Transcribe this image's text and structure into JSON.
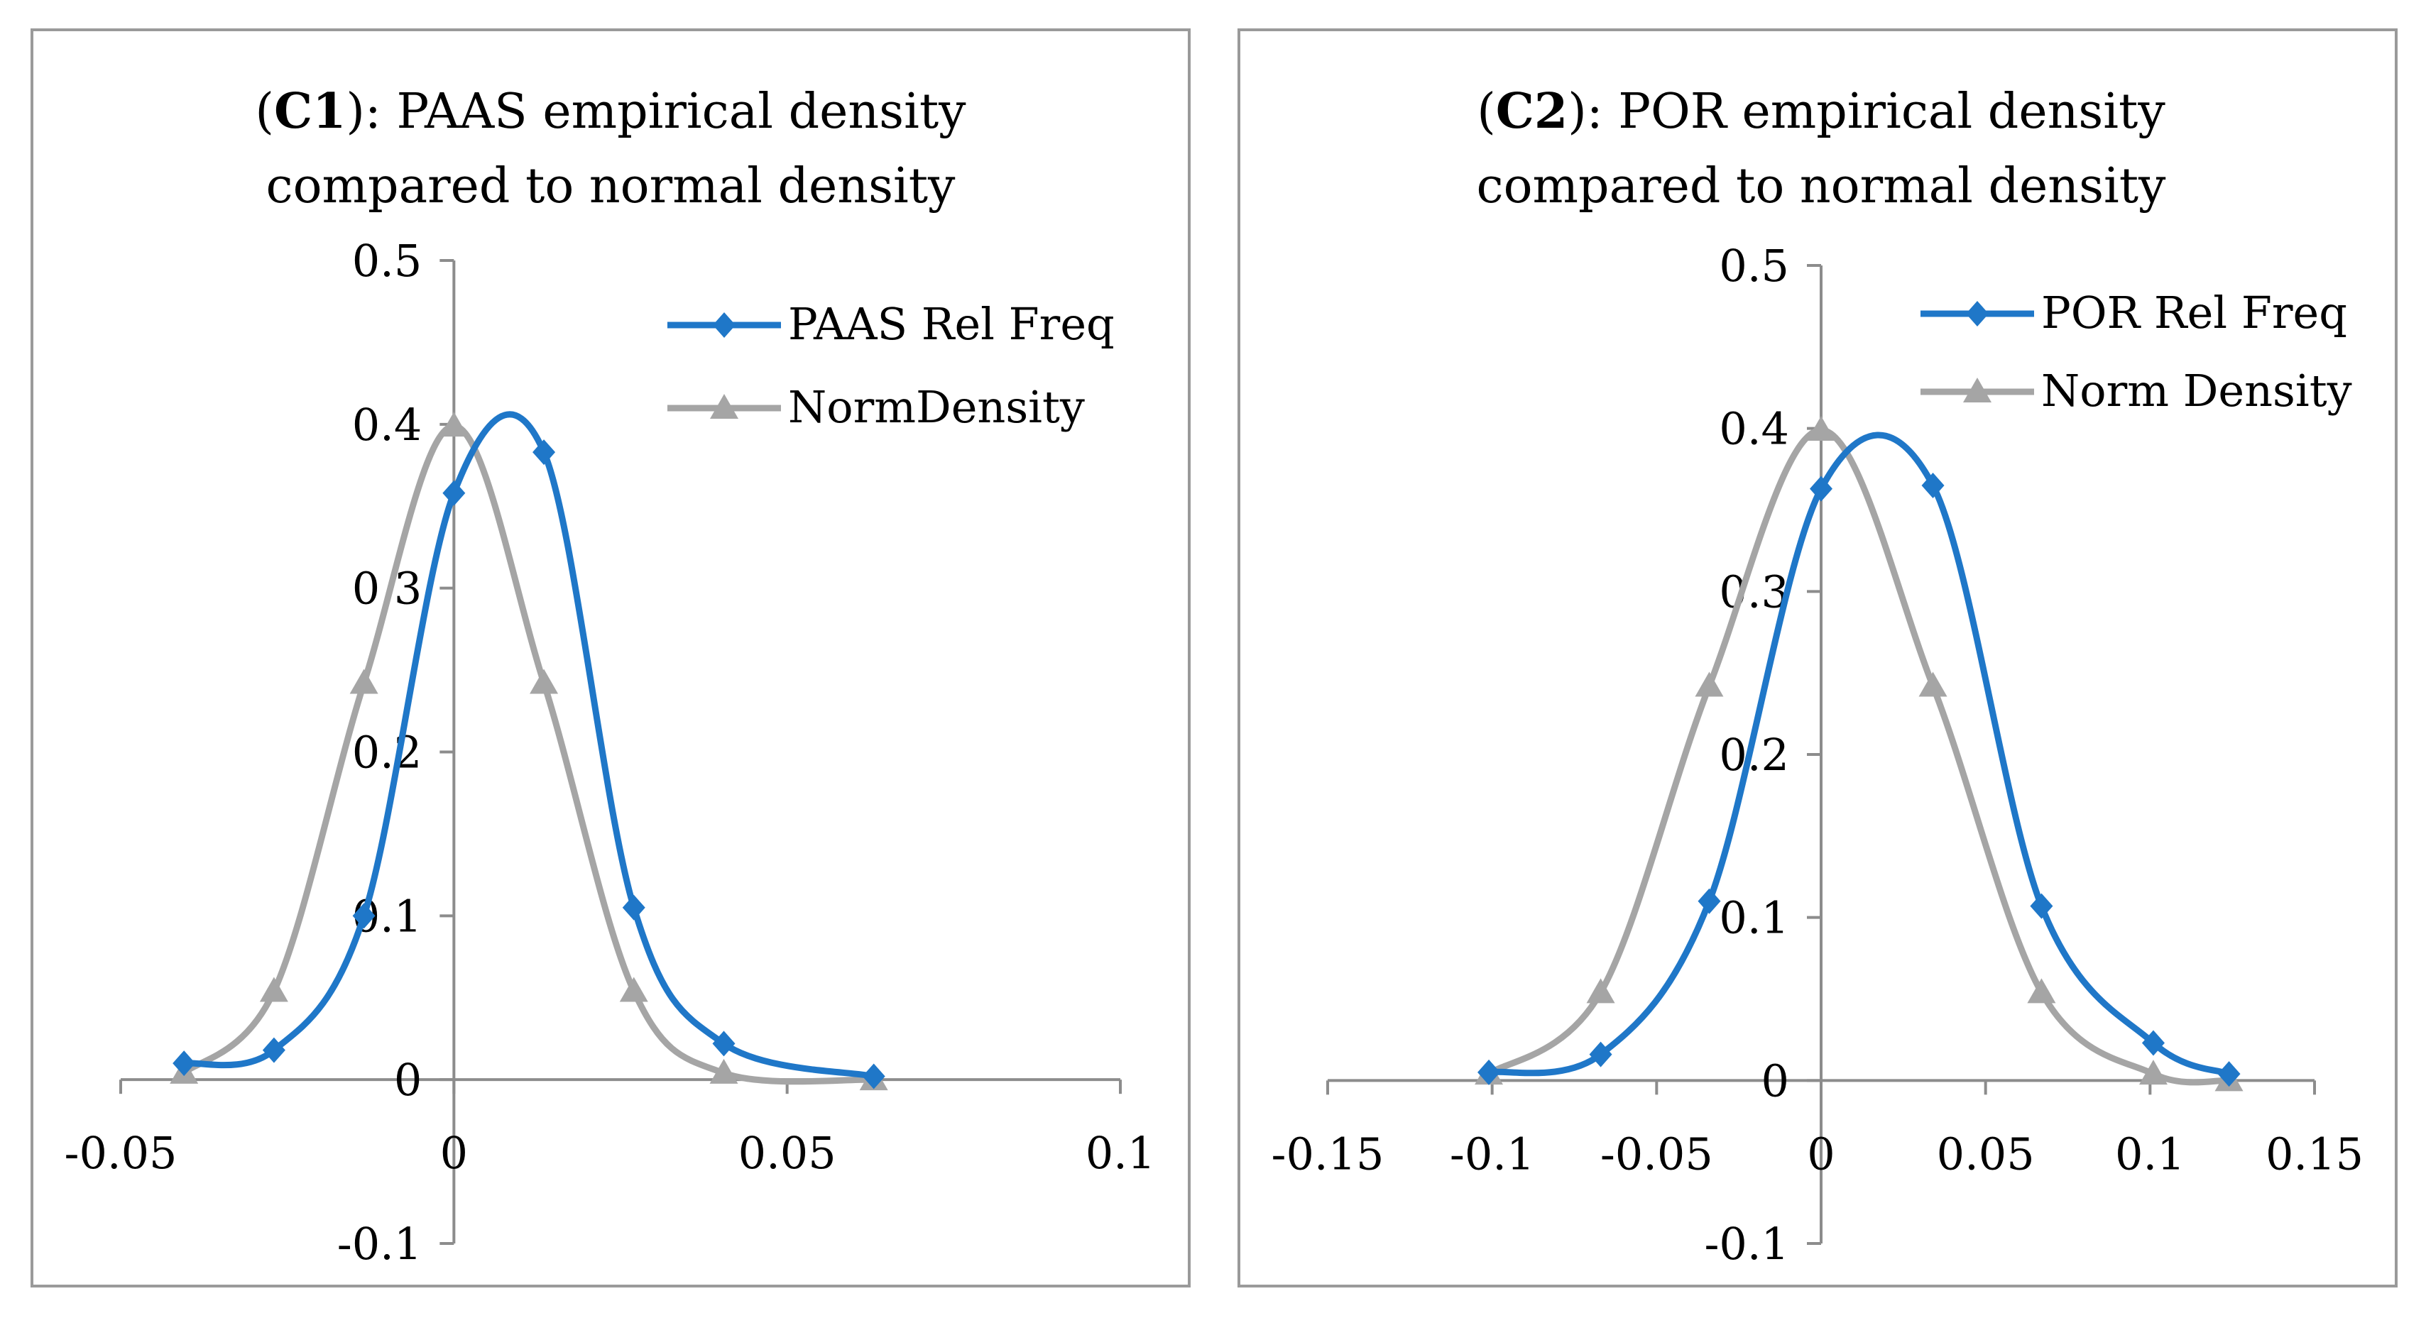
{
  "chart_data": [
    {
      "type": "line",
      "title_prefix": "(",
      "title_bold": "C1",
      "title_rest": "): PAAS empirical density",
      "title_line2": "compared to normal density",
      "xlabel": "",
      "ylabel": "",
      "xlim": [
        -0.05,
        0.1
      ],
      "ylim": [
        -0.1,
        0.5
      ],
      "x_ticks": [
        -0.05,
        0,
        0.05,
        0.1
      ],
      "x_tick_labels": [
        "-0.05",
        "0",
        "0.05",
        "0.1"
      ],
      "y_ticks": [
        -0.1,
        0,
        0.1,
        0.2,
        0.3,
        0.4,
        0.5
      ],
      "y_tick_labels": [
        "-0.1",
        "0",
        "0.1",
        "0.2",
        "0.3",
        "0.4",
        "0.5"
      ],
      "grid": false,
      "legend_position": "top-right",
      "series": [
        {
          "name": "PAAS Rel Freq",
          "color": "#1f77c8",
          "marker": "diamond",
          "x": [
            -0.0405,
            -0.027,
            -0.0135,
            0.0,
            0.0135,
            0.027,
            0.0405,
            0.063
          ],
          "y": [
            0.01,
            0.018,
            0.1,
            0.358,
            0.383,
            0.105,
            0.022,
            0.002
          ]
        },
        {
          "name": "NormDensity",
          "color": "#a5a5a5",
          "marker": "triangle",
          "x": [
            -0.0405,
            -0.027,
            -0.0135,
            0.0,
            0.0135,
            0.027,
            0.0405,
            0.063
          ],
          "y": [
            0.004,
            0.054,
            0.242,
            0.399,
            0.242,
            0.054,
            0.004,
            0.0
          ]
        }
      ]
    },
    {
      "type": "line",
      "title_prefix": "(",
      "title_bold": "C2",
      "title_rest": "): POR empirical density",
      "title_line2": "compared to normal density",
      "xlabel": "",
      "ylabel": "",
      "xlim": [
        -0.15,
        0.15
      ],
      "ylim": [
        -0.1,
        0.5
      ],
      "x_ticks": [
        -0.15,
        -0.1,
        -0.05,
        0,
        0.05,
        0.1,
        0.15
      ],
      "x_tick_labels": [
        "-0.15",
        "-0.1",
        "-0.05",
        "0",
        "0.05",
        "0.1",
        "0.15"
      ],
      "y_ticks": [
        -0.1,
        0,
        0.1,
        0.2,
        0.3,
        0.4,
        0.5
      ],
      "y_tick_labels": [
        "-0.1",
        "0",
        "0.1",
        "0.2",
        "0.3",
        "0.4",
        "0.5"
      ],
      "grid": false,
      "legend_position": "top-right",
      "series": [
        {
          "name": "POR Rel Freq",
          "color": "#1f77c8",
          "marker": "diamond",
          "x": [
            -0.101,
            -0.067,
            -0.034,
            0.0,
            0.034,
            0.067,
            0.101,
            0.124
          ],
          "y": [
            0.005,
            0.016,
            0.11,
            0.363,
            0.365,
            0.107,
            0.023,
            0.004
          ]
        },
        {
          "name": "Norm Density",
          "color": "#a5a5a5",
          "marker": "triangle",
          "x": [
            -0.101,
            -0.067,
            -0.034,
            0.0,
            0.034,
            0.067,
            0.101,
            0.124
          ],
          "y": [
            0.004,
            0.054,
            0.242,
            0.399,
            0.242,
            0.054,
            0.004,
            0.0
          ]
        }
      ]
    }
  ]
}
